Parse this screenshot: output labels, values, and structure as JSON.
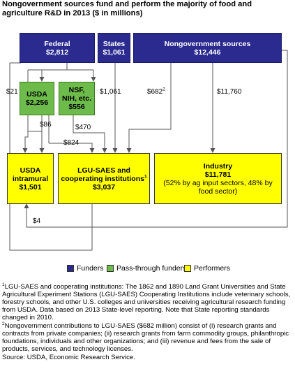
{
  "title": "Nongovernment sources fund and perform the majority of food and agriculture R&D in 2013 ($ in millions)",
  "colors": {
    "funders": "#2a2a8f",
    "pass_through": "#6dbb4a",
    "performers": "#ffff00",
    "lines": "#555555"
  },
  "nodes": {
    "federal": {
      "name": "Federal",
      "value": "$2,812"
    },
    "states": {
      "name": "States",
      "value": "$1,061"
    },
    "nongov": {
      "name": "Nongovernment sources",
      "value": "$12,446"
    },
    "usda": {
      "name": "USDA",
      "value": "$2,256"
    },
    "nsf": {
      "name": "NSF, NIH, etc.",
      "value": "$556"
    },
    "usda_intramural": {
      "name": "USDA intramural",
      "value": "$1,501"
    },
    "lgu": {
      "name": "LGU-SAES and cooperating institutions",
      "sup": "1",
      "value": "$3,037"
    },
    "industry": {
      "name": "Industry",
      "value": "$11,781",
      "note": "(52% by ag input sectors, 48% by food sector)"
    }
  },
  "flows": {
    "federal_to_intramural": "$21",
    "states_to_lgu": "$1,061",
    "nongov_to_lgu": "$682",
    "nongov_to_lgu_sup": "2",
    "nongov_to_industry": "$11,760",
    "usda_to_intramural": "$86",
    "nsf_to_lgu": "$470",
    "usda_to_lgu": "$824",
    "industry_to_intramural": "$4"
  },
  "legend": [
    {
      "label": "Funders",
      "color": "#2a2a8f"
    },
    {
      "label": "Pass-through funders",
      "color": "#6dbb4a"
    },
    {
      "label": "Performers",
      "color": "#ffff00"
    }
  ],
  "footnotes": {
    "note1_marker": "1",
    "note1": "LGU-SAES and cooperating institutions: The 1862 and 1890 Land Grant Universities and State Agricultural Experiment Stations (LGU-SAES) Cooperating Institutions include veterinary schools, forestry schools, and other U.S. colleges and universities receiving agricultural research funding from USDA. Data based on 2013 State-level reporting. Note that State reporting standards changed in 2010.",
    "note2_marker": "2",
    "note2": "Nongovernment contributions to LGU-SAES ($682 million) consist of (i) research grants and contracts from private companies; (ii) research grants from farm commodity groups, philanthropic foundations, individuals and other organizations; and (iii) revenue and fees from the sale of products, services, and technology licenses.",
    "source": "Source: USDA, Economic Research Service."
  }
}
